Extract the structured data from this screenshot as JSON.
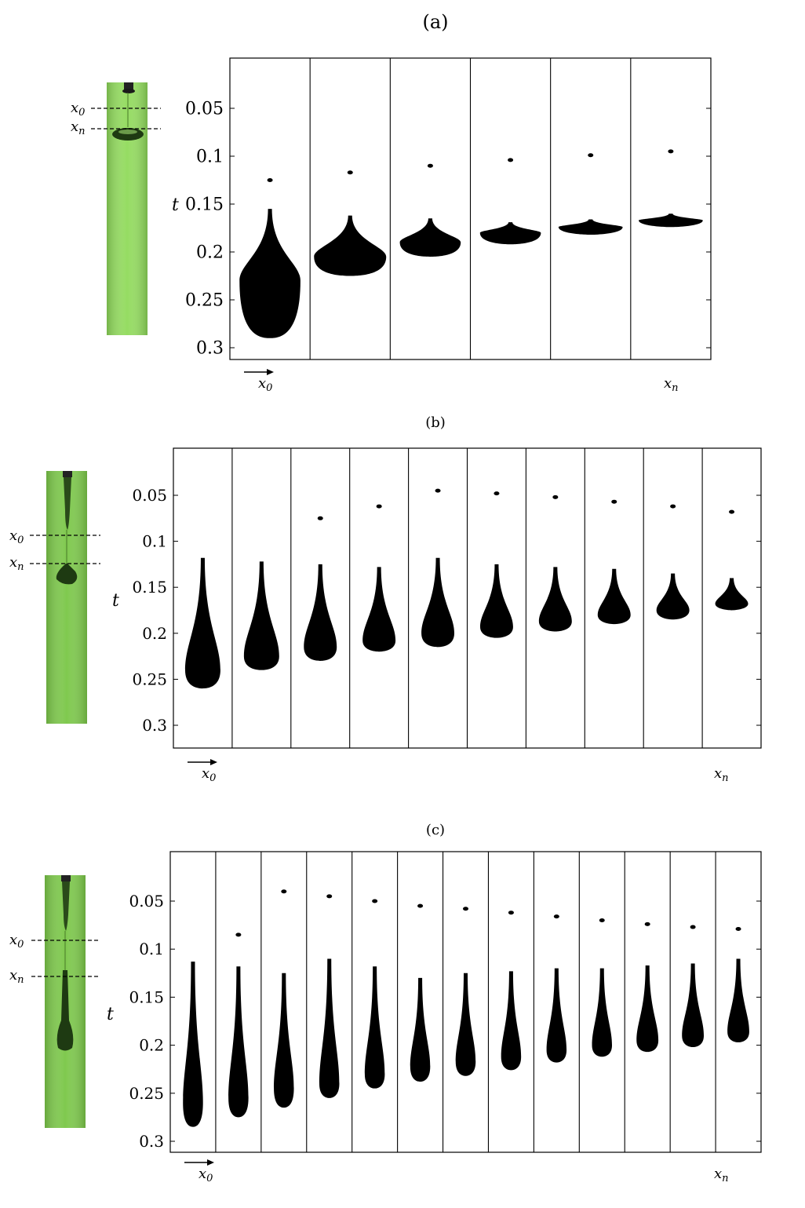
{
  "t_symbol": "t",
  "x0_base": "x",
  "x0_sub": "0",
  "xn_base": "x",
  "xn_sub": "n",
  "tick_labels": [
    "0.05",
    "0.1",
    "0.15",
    "0.2",
    "0.25",
    "0.3"
  ],
  "colors": {
    "green_photo": "#8fd45f",
    "green_dark": "#6aa03a",
    "ink": "#000000"
  },
  "panels": [
    {
      "id": "a",
      "label": "(a)",
      "frame_count": 6,
      "drops": [
        {
          "tip": 0.125,
          "top": 0.155,
          "bulge": 0.23,
          "bottom": 0.29,
          "width": 0.38
        },
        {
          "tip": 0.117,
          "top": 0.162,
          "bulge": 0.205,
          "bottom": 0.225,
          "width": 0.45
        },
        {
          "tip": 0.11,
          "top": 0.165,
          "bulge": 0.19,
          "bottom": 0.205,
          "width": 0.38
        },
        {
          "tip": 0.104,
          "top": 0.169,
          "bulge": 0.18,
          "bottom": 0.192,
          "width": 0.38
        },
        {
          "tip": 0.099,
          "top": 0.166,
          "bulge": 0.174,
          "bottom": 0.182,
          "width": 0.4
        },
        {
          "tip": 0.095,
          "top": 0.16,
          "bulge": 0.167,
          "bottom": 0.174,
          "width": 0.4
        }
      ]
    },
    {
      "id": "b",
      "label": "(b)",
      "frame_count": 10,
      "drops": [
        {
          "tip": null,
          "top": 0.118,
          "bulge": 0.24,
          "bottom": 0.26,
          "width": 0.3
        },
        {
          "tip": null,
          "top": 0.122,
          "bulge": 0.225,
          "bottom": 0.24,
          "width": 0.3
        },
        {
          "tip": 0.075,
          "top": 0.125,
          "bulge": 0.215,
          "bottom": 0.23,
          "width": 0.28
        },
        {
          "tip": 0.062,
          "top": 0.128,
          "bulge": 0.208,
          "bottom": 0.22,
          "width": 0.28
        },
        {
          "tip": 0.045,
          "top": 0.118,
          "bulge": 0.2,
          "bottom": 0.215,
          "width": 0.28
        },
        {
          "tip": 0.048,
          "top": 0.125,
          "bulge": 0.193,
          "bottom": 0.205,
          "width": 0.28
        },
        {
          "tip": 0.052,
          "top": 0.128,
          "bulge": 0.187,
          "bottom": 0.198,
          "width": 0.28
        },
        {
          "tip": 0.057,
          "top": 0.13,
          "bulge": 0.18,
          "bottom": 0.19,
          "width": 0.28
        },
        {
          "tip": 0.062,
          "top": 0.135,
          "bulge": 0.175,
          "bottom": 0.185,
          "width": 0.28
        },
        {
          "tip": 0.068,
          "top": 0.14,
          "bulge": 0.168,
          "bottom": 0.175,
          "width": 0.28
        }
      ]
    },
    {
      "id": "c",
      "label": "(c)",
      "frame_count": 13,
      "drops": [
        {
          "tip": null,
          "top": 0.113,
          "bulge": 0.26,
          "bottom": 0.285,
          "width": 0.22
        },
        {
          "tip": 0.085,
          "top": 0.118,
          "bulge": 0.255,
          "bottom": 0.275,
          "width": 0.22
        },
        {
          "tip": 0.04,
          "top": 0.125,
          "bulge": 0.245,
          "bottom": 0.265,
          "width": 0.22
        },
        {
          "tip": 0.045,
          "top": 0.11,
          "bulge": 0.24,
          "bottom": 0.255,
          "width": 0.22
        },
        {
          "tip": 0.05,
          "top": 0.118,
          "bulge": 0.23,
          "bottom": 0.245,
          "width": 0.22
        },
        {
          "tip": 0.055,
          "top": 0.13,
          "bulge": 0.222,
          "bottom": 0.238,
          "width": 0.22
        },
        {
          "tip": 0.058,
          "top": 0.125,
          "bulge": 0.217,
          "bottom": 0.232,
          "width": 0.22
        },
        {
          "tip": 0.062,
          "top": 0.123,
          "bulge": 0.212,
          "bottom": 0.226,
          "width": 0.22
        },
        {
          "tip": 0.066,
          "top": 0.12,
          "bulge": 0.205,
          "bottom": 0.218,
          "width": 0.22
        },
        {
          "tip": 0.07,
          "top": 0.12,
          "bulge": 0.2,
          "bottom": 0.212,
          "width": 0.22
        },
        {
          "tip": 0.074,
          "top": 0.117,
          "bulge": 0.195,
          "bottom": 0.207,
          "width": 0.24
        },
        {
          "tip": 0.077,
          "top": 0.115,
          "bulge": 0.19,
          "bottom": 0.202,
          "width": 0.24
        },
        {
          "tip": 0.079,
          "top": 0.11,
          "bulge": 0.186,
          "bottom": 0.197,
          "width": 0.24
        }
      ]
    }
  ]
}
